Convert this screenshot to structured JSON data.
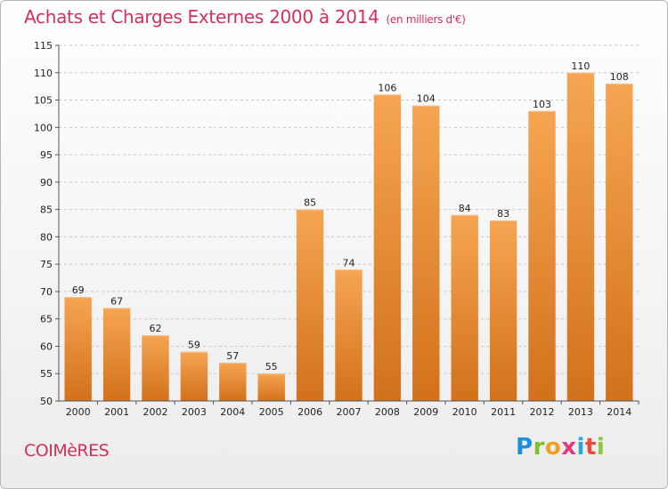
{
  "title": "Achats et Charges Externes 2000 à 2014",
  "subtitle": "(en milliers d'€)",
  "commune": "COIMèRES",
  "logo": {
    "p": "P",
    "r": "r",
    "o": "o",
    "x": "x",
    "i1": "i",
    "t": "t",
    "i2": "i"
  },
  "chart_data": {
    "type": "bar",
    "title": "Achats et Charges Externes 2000 à 2014",
    "subtitle": "(en milliers d'€)",
    "categories": [
      "2000",
      "2001",
      "2002",
      "2003",
      "2004",
      "2005",
      "2006",
      "2007",
      "2008",
      "2009",
      "2010",
      "2011",
      "2012",
      "2013",
      "2014"
    ],
    "values": [
      69,
      67,
      62,
      59,
      57,
      55,
      85,
      74,
      106,
      104,
      84,
      83,
      103,
      110,
      108
    ],
    "ylim": [
      50,
      115
    ],
    "yticks": [
      50,
      55,
      60,
      65,
      70,
      75,
      80,
      85,
      90,
      95,
      100,
      105,
      110,
      115
    ],
    "grid": "horizontal dashed",
    "colors": {
      "bar_light": "#f5a04f",
      "bar_dark": "#d4731c",
      "grid": "#c8c8c8"
    }
  }
}
